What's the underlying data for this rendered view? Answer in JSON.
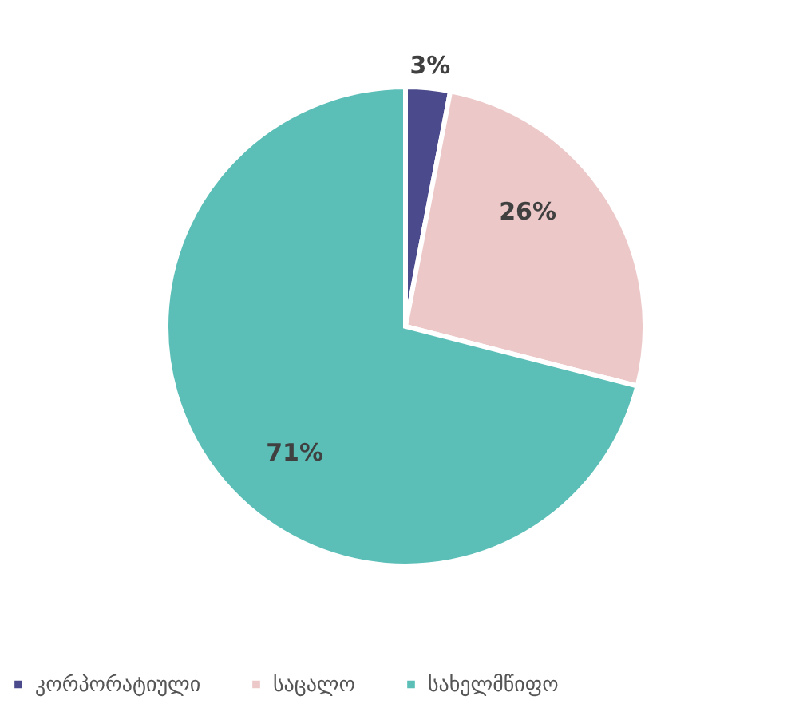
{
  "chart_data": {
    "type": "pie",
    "categories": [
      "კორპორატიული",
      "საცალო",
      "სახელმწიფო"
    ],
    "values": [
      3,
      26,
      71
    ],
    "colors": [
      "#4b4a8c",
      "#ecc8c8",
      "#5bbfb8"
    ],
    "value_labels": [
      "3%",
      "26%",
      "71%"
    ],
    "legend": "bottom"
  }
}
